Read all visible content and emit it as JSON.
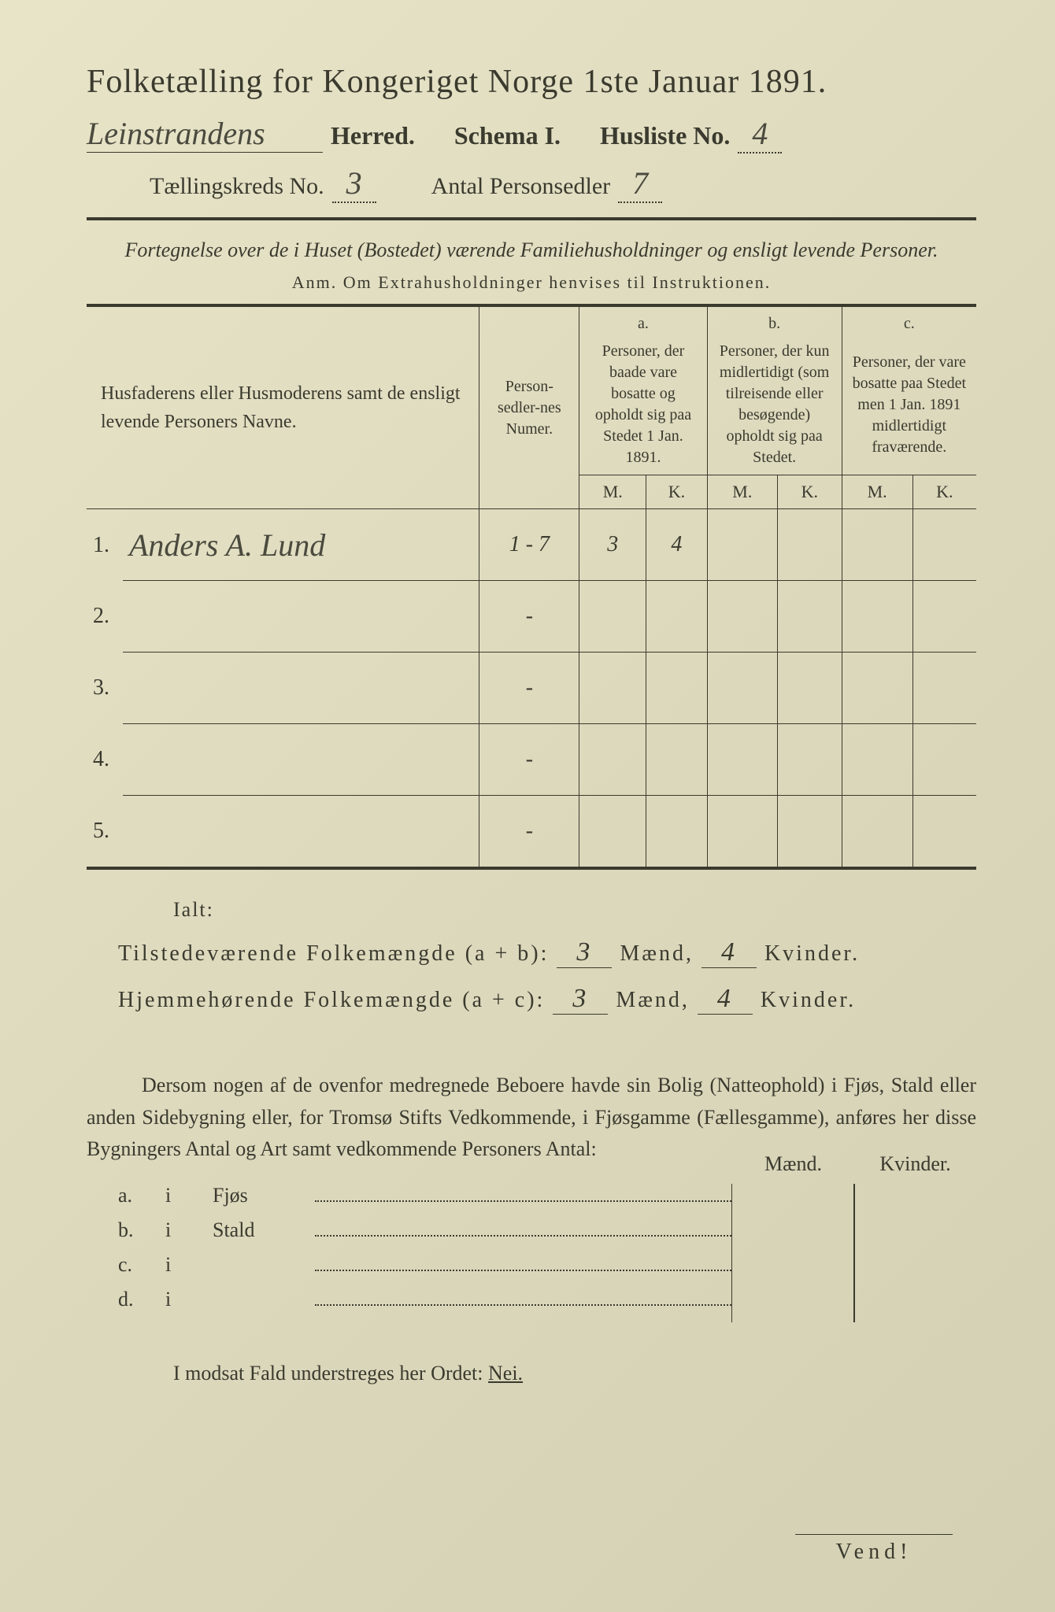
{
  "header": {
    "title": "Folketælling for Kongeriget Norge 1ste Januar 1891.",
    "herred_hw": "Leinstrandens",
    "herred_label": "Herred.",
    "schema": "Schema I.",
    "husliste_label": "Husliste No.",
    "husliste_no": "4",
    "kreds_label": "Tællingskreds No.",
    "kreds_no": "3",
    "personsedler_label": "Antal Personsedler",
    "personsedler_no": "7"
  },
  "subtitle": "Fortegnelse over de i Huset (Bostedet) værende Familiehusholdninger og ensligt levende Personer.",
  "anm": "Anm.  Om Extrahusholdninger henvises til Instruktionen.",
  "table": {
    "col_name": "Husfaderens eller Husmoderens samt de ensligt levende Personers Navne.",
    "col_num": "Person-sedler-nes Numer.",
    "col_a_top": "a.",
    "col_a": "Personer, der baade vare bosatte og opholdt sig paa Stedet 1 Jan. 1891.",
    "col_b_top": "b.",
    "col_b": "Personer, der kun midlertidigt (som tilreisende eller besøgende) opholdt sig paa Stedet.",
    "col_c_top": "c.",
    "col_c": "Personer, der vare bosatte paa Stedet men 1 Jan. 1891 midlertidigt fraværende.",
    "m": "M.",
    "k": "K.",
    "rows": [
      {
        "n": "1.",
        "name": "Anders A. Lund",
        "num": "1 - 7",
        "am": "3",
        "ak": "4",
        "bm": "",
        "bk": "",
        "cm": "",
        "ck": ""
      },
      {
        "n": "2.",
        "name": "",
        "num": "-",
        "am": "",
        "ak": "",
        "bm": "",
        "bk": "",
        "cm": "",
        "ck": ""
      },
      {
        "n": "3.",
        "name": "",
        "num": "-",
        "am": "",
        "ak": "",
        "bm": "",
        "bk": "",
        "cm": "",
        "ck": ""
      },
      {
        "n": "4.",
        "name": "",
        "num": "-",
        "am": "",
        "ak": "",
        "bm": "",
        "bk": "",
        "cm": "",
        "ck": ""
      },
      {
        "n": "5.",
        "name": "",
        "num": "-",
        "am": "",
        "ak": "",
        "bm": "",
        "bk": "",
        "cm": "",
        "ck": ""
      }
    ]
  },
  "ialt": "Ialt:",
  "sum1_label": "Tilstedeværende Folkemængde (a + b):",
  "sum2_label": "Hjemmehørende Folkemængde (a + c):",
  "maend": "Mænd,",
  "kvinder": "Kvinder.",
  "sum1_m": "3",
  "sum1_k": "4",
  "sum2_m": "3",
  "sum2_k": "4",
  "para": "Dersom nogen af de ovenfor medregnede Beboere havde sin Bolig (Natteophold) i Fjøs, Stald eller anden Sidebygning eller, for Tromsø Stifts Vedkommende, i Fjøsgamme (Fællesgamme), anføres her disse Bygningers Antal og Art samt vedkommende Personers Antal:",
  "side": {
    "hdr_m": "Mænd.",
    "hdr_k": "Kvinder.",
    "rows": [
      {
        "a": "a.",
        "i": "i",
        "cat": "Fjøs"
      },
      {
        "a": "b.",
        "i": "i",
        "cat": "Stald"
      },
      {
        "a": "c.",
        "i": "i",
        "cat": ""
      },
      {
        "a": "d.",
        "i": "i",
        "cat": ""
      }
    ]
  },
  "nei_line_pre": "I modsat Fald understreges her Ordet: ",
  "nei": "Nei.",
  "vend": "Vend!"
}
